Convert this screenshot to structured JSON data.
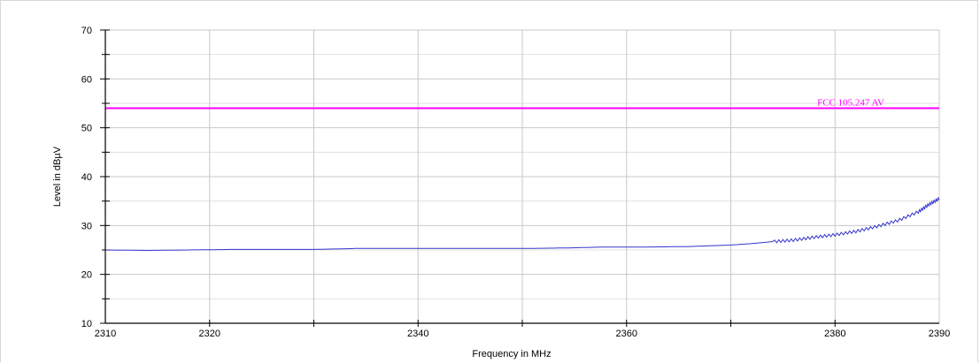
{
  "chart_data": {
    "type": "line",
    "title": "",
    "xlabel": "Frequency in MHz",
    "ylabel": "Level in dBµV",
    "xlim": [
      2310,
      2390
    ],
    "ylim": [
      10,
      70
    ],
    "x_tick_labels": [
      "2310",
      "2320",
      "2340",
      "2360",
      "2380",
      "2390"
    ],
    "y_tick_labels": [
      "10",
      "20",
      "30",
      "40",
      "50",
      "60",
      "70"
    ],
    "grid": true,
    "limit_lines": [
      {
        "label": "FCC 105.247 AV",
        "value": 54,
        "color": "#ff00ff"
      }
    ],
    "series": [
      {
        "color": "#3333cc",
        "x": [
          2310,
          2314,
          2318,
          2322,
          2326,
          2330,
          2334,
          2338,
          2342,
          2346,
          2350,
          2354,
          2358,
          2362,
          2366,
          2370,
          2372,
          2374,
          2376,
          2378,
          2380,
          2382,
          2384,
          2386,
          2388,
          2389,
          2390
        ],
        "values": [
          25.0,
          24.9,
          25.0,
          25.1,
          25.1,
          25.1,
          25.3,
          25.3,
          25.3,
          25.3,
          25.3,
          25.4,
          25.6,
          25.6,
          25.7,
          26.0,
          26.3,
          26.7,
          27.0,
          27.6,
          28.1,
          28.8,
          29.8,
          31.0,
          32.8,
          34.3,
          35.5
        ]
      }
    ]
  }
}
